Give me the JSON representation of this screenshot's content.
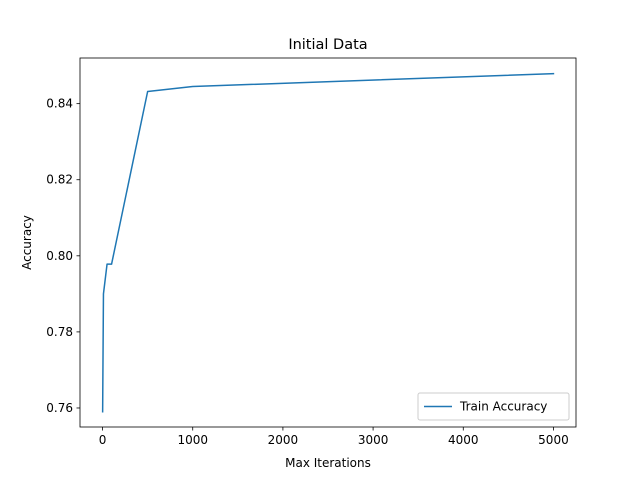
{
  "chart_data": {
    "type": "line",
    "title": "Initial Data",
    "xlabel": "Max Iterations",
    "ylabel": "Accuracy",
    "xlim": [
      -250,
      5250
    ],
    "ylim": [
      0.755,
      0.852
    ],
    "xticks": [
      0,
      1000,
      2000,
      3000,
      4000,
      5000
    ],
    "yticks": [
      0.76,
      0.78,
      0.8,
      0.82,
      0.84
    ],
    "xtick_labels": [
      "0",
      "1000",
      "2000",
      "3000",
      "4000",
      "5000"
    ],
    "ytick_labels": [
      "0.76",
      "0.78",
      "0.80",
      "0.82",
      "0.84"
    ],
    "grid": false,
    "legend_position": "lower-right",
    "series": [
      {
        "name": "Train Accuracy",
        "color": "#1f77b4",
        "x": [
          1,
          10,
          50,
          100,
          500,
          1000,
          5000
        ],
        "y": [
          0.759,
          0.79,
          0.7978,
          0.7978,
          0.8432,
          0.8445,
          0.8479
        ]
      }
    ]
  }
}
